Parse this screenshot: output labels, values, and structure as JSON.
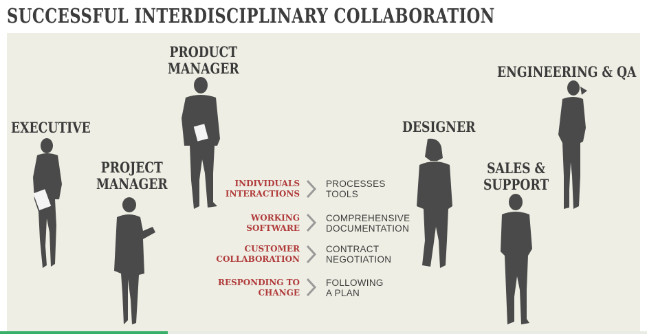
{
  "title": "SUCCESSFUL INTERDISCIPLINARY COLLABORATION",
  "roles": {
    "executive": "EXECUTIVE",
    "product_manager": "PRODUCT\nMANAGER",
    "project_manager": "PROJECT\nMANAGER",
    "designer": "DESIGNER",
    "engineering_qa": "ENGINEERING & QA",
    "sales_support": "SALES &\nSUPPORT"
  },
  "values": [
    {
      "over": "INDIVIDUALS\nINTERACTIONS",
      "under": "PROCESSES\nTOOLS"
    },
    {
      "over": "WORKING\nSOFTWARE",
      "under": "COMPREHENSIVE\nDOCUMENTATION"
    },
    {
      "over": "CUSTOMER\nCOLLABORATION",
      "under": "CONTRACT\nNEGOTIATION"
    },
    {
      "over": "RESPONDING TO\nCHANGE",
      "under": "FOLLOWING\nA PLAN"
    }
  ],
  "icons": {
    "separator": "chevron-right-icon",
    "figures": [
      "executive-silhouette",
      "project-manager-silhouette",
      "product-manager-silhouette",
      "designer-silhouette",
      "sales-support-silhouette",
      "engineering-qa-silhouette"
    ]
  },
  "colors": {
    "background": "#eeeee4",
    "figure": "#4a4a4a",
    "highlight_text": "#b03a3a",
    "plain_text": "#3c3c3c",
    "progress": "#38b06a"
  }
}
